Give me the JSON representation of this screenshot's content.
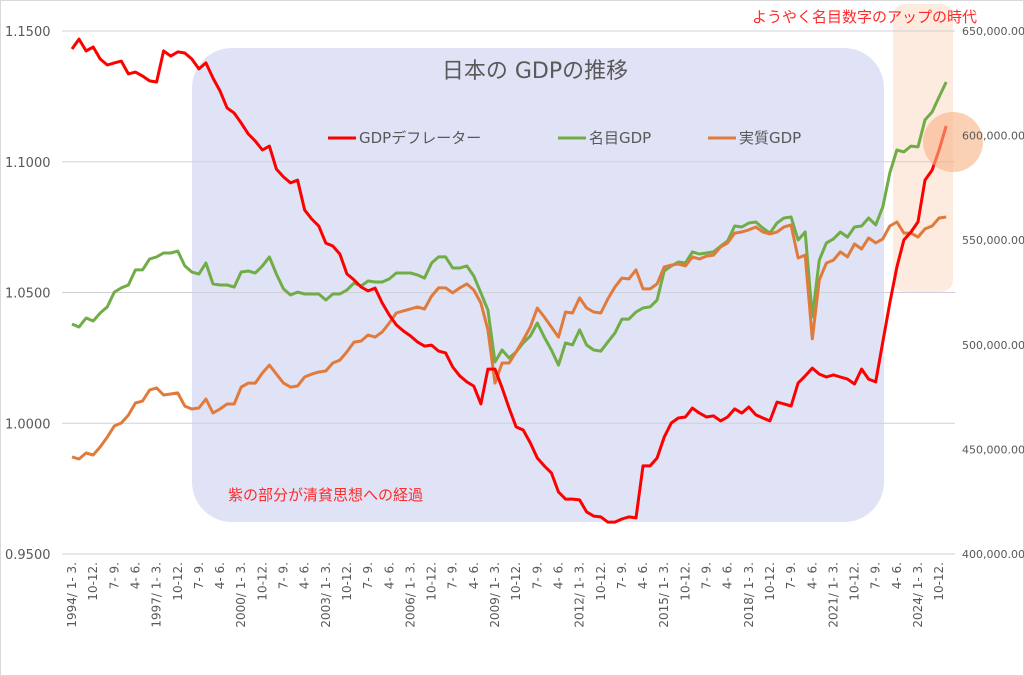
{
  "chart_data": {
    "type": "line",
    "title": "日本の GDPの推移",
    "annotations": {
      "top_right": "ようやく名目数字のアップの時代",
      "purple_region": "紫の部分が清貧思想への経過"
    },
    "x_start": "1994 Q1",
    "x_tick_labels": [
      "1994/ 1- 3.",
      "10-12.",
      "7- 9.",
      "4- 6.",
      "1997/ 1- 3.",
      "10-12.",
      "7- 9.",
      "4- 6.",
      "2000/ 1- 3.",
      "10-12.",
      "7- 9.",
      "4- 6.",
      "2003/ 1- 3.",
      "10-12.",
      "7- 9.",
      "4- 6.",
      "2006/ 1- 3.",
      "10-12.",
      "7- 9.",
      "4- 6.",
      "2009/ 1- 3.",
      "10-12.",
      "7- 9.",
      "4- 6.",
      "2012/ 1- 3.",
      "10-12.",
      "7- 9.",
      "4- 6.",
      "2015/ 1- 3.",
      "10-12.",
      "7- 9.",
      "4- 6.",
      "2018/ 1- 3.",
      "10-12.",
      "7- 9.",
      "4- 6.",
      "2021/ 1- 3.",
      "10-12.",
      "7- 9.",
      "4- 6.",
      "2024/ 1- 3.",
      "10-12."
    ],
    "y_left": {
      "min": 0.95,
      "max": 1.15,
      "step": 0.05,
      "tick_labels": [
        "0.9500",
        "1.0000",
        "1.0500",
        "1.1000",
        "1.1500"
      ]
    },
    "y_right": {
      "min": 400000,
      "max": 650000,
      "step": 50000,
      "tick_labels": [
        "400,000.00",
        "450,000.00",
        "500,000.00",
        "550,000.00",
        "600,000.00",
        "650,000.00"
      ]
    },
    "grid": true,
    "legend_position": "top-center",
    "series": [
      {
        "name": "GDPデフレーター",
        "axis": "left",
        "color": "#ff0000",
        "values": [
          1.1431,
          1.1469,
          1.1424,
          1.1439,
          1.1393,
          1.137,
          1.1378,
          1.1385,
          1.1336,
          1.1343,
          1.1328,
          1.1309,
          1.1305,
          1.1424,
          1.1404,
          1.142,
          1.1416,
          1.1393,
          1.1355,
          1.1378,
          1.132,
          1.1271,
          1.1206,
          1.1186,
          1.1148,
          1.1106,
          1.1079,
          1.1045,
          1.106,
          1.0972,
          1.0942,
          1.0919,
          1.093,
          1.0816,
          1.0781,
          1.0754,
          1.0689,
          1.0678,
          1.0647,
          1.0571,
          1.0548,
          1.0521,
          1.0506,
          1.0517,
          1.046,
          1.0414,
          1.0376,
          1.0353,
          1.0334,
          1.0311,
          1.0295,
          1.0299,
          1.0276,
          1.0269,
          1.0215,
          1.0181,
          1.0158,
          1.0142,
          1.0074,
          1.0207,
          1.0207,
          1.0135,
          1.0058,
          0.9986,
          0.9974,
          0.9925,
          0.9867,
          0.9837,
          0.981,
          0.9737,
          0.971,
          0.971,
          0.9707,
          0.9661,
          0.9645,
          0.9642,
          0.9622,
          0.9622,
          0.9634,
          0.9642,
          0.9638,
          0.9837,
          0.9837,
          0.9867,
          0.9947,
          1.0001,
          1.002,
          1.0024,
          1.0058,
          1.0039,
          1.0024,
          1.0028,
          1.0009,
          1.0024,
          1.0055,
          1.0039,
          1.0062,
          1.0032,
          1.002,
          1.0009,
          1.0081,
          1.0074,
          1.0066,
          1.0154,
          1.0181,
          1.0211,
          1.0188,
          1.0177,
          1.0185,
          1.0177,
          1.0169,
          1.015,
          1.0207,
          1.0169,
          1.0158,
          1.0311,
          1.046,
          1.0598,
          1.0701,
          1.0731,
          1.077,
          1.093,
          1.0968,
          1.1045,
          1.1137
        ]
      },
      {
        "name": "名目GDP",
        "axis": "right",
        "color": "#70ad47",
        "values": [
          509900,
          508500,
          512800,
          511400,
          515200,
          518100,
          525200,
          527200,
          528600,
          535800,
          535800,
          541000,
          542000,
          543900,
          543900,
          544800,
          537700,
          534800,
          533800,
          539100,
          529100,
          528600,
          528600,
          527600,
          534800,
          535300,
          534300,
          537700,
          542000,
          533800,
          526700,
          523800,
          525200,
          524300,
          524300,
          524300,
          521400,
          524300,
          524300,
          526200,
          529500,
          528100,
          530500,
          530000,
          530000,
          531500,
          534300,
          534300,
          534300,
          533400,
          531900,
          539100,
          542000,
          542000,
          536700,
          536700,
          537700,
          532900,
          524800,
          516600,
          491800,
          497500,
          493700,
          496600,
          500900,
          504200,
          510400,
          503700,
          497500,
          490300,
          500900,
          499900,
          507100,
          499900,
          497500,
          497000,
          501300,
          505600,
          512300,
          512300,
          515700,
          517600,
          518100,
          521400,
          535300,
          537700,
          539600,
          539100,
          544400,
          543400,
          543900,
          544400,
          547200,
          549600,
          556800,
          556300,
          558200,
          558700,
          555800,
          553400,
          558200,
          560600,
          561100,
          550100,
          553900,
          513300,
          540500,
          548700,
          550600,
          553900,
          551500,
          556300,
          556800,
          560600,
          557300,
          565900,
          582100,
          593100,
          592200,
          595000,
          594600,
          607500,
          611300,
          618500,
          625600
        ]
      },
      {
        "name": "実質GDP",
        "axis": "right",
        "color": "#e07b3c",
        "values": [
          446400,
          445400,
          448300,
          447300,
          451200,
          455900,
          461200,
          462600,
          466400,
          472200,
          473100,
          478400,
          479400,
          476000,
          476500,
          477000,
          470700,
          469300,
          469800,
          474100,
          467400,
          469300,
          471700,
          471700,
          479800,
          481700,
          481700,
          486500,
          490300,
          486000,
          481700,
          479800,
          480300,
          484600,
          486000,
          487000,
          487500,
          491300,
          492700,
          496600,
          501300,
          501800,
          504700,
          503700,
          506100,
          510400,
          515200,
          516200,
          517100,
          518100,
          517100,
          523300,
          527200,
          527200,
          524800,
          527200,
          529100,
          526200,
          520000,
          507100,
          481700,
          491300,
          491300,
          496600,
          502300,
          508500,
          517600,
          513300,
          508500,
          503700,
          515700,
          515200,
          522400,
          517600,
          515700,
          515200,
          521900,
          527600,
          531900,
          531500,
          535800,
          526700,
          526700,
          529100,
          537200,
          538100,
          538600,
          537700,
          542000,
          541000,
          542400,
          542900,
          546800,
          548700,
          553400,
          553900,
          554900,
          556300,
          553900,
          553000,
          553900,
          556300,
          557300,
          541500,
          542900,
          502800,
          531000,
          539100,
          540500,
          544400,
          542000,
          548200,
          545800,
          551100,
          548700,
          550600,
          556800,
          558700,
          553400,
          553400,
          551500,
          555400,
          556800,
          560600,
          561100
        ]
      }
    ],
    "colors": {
      "purple_region": "#e0e2f6",
      "orange_region": "#fde8da",
      "highlight_circle": "#f7b283"
    }
  }
}
